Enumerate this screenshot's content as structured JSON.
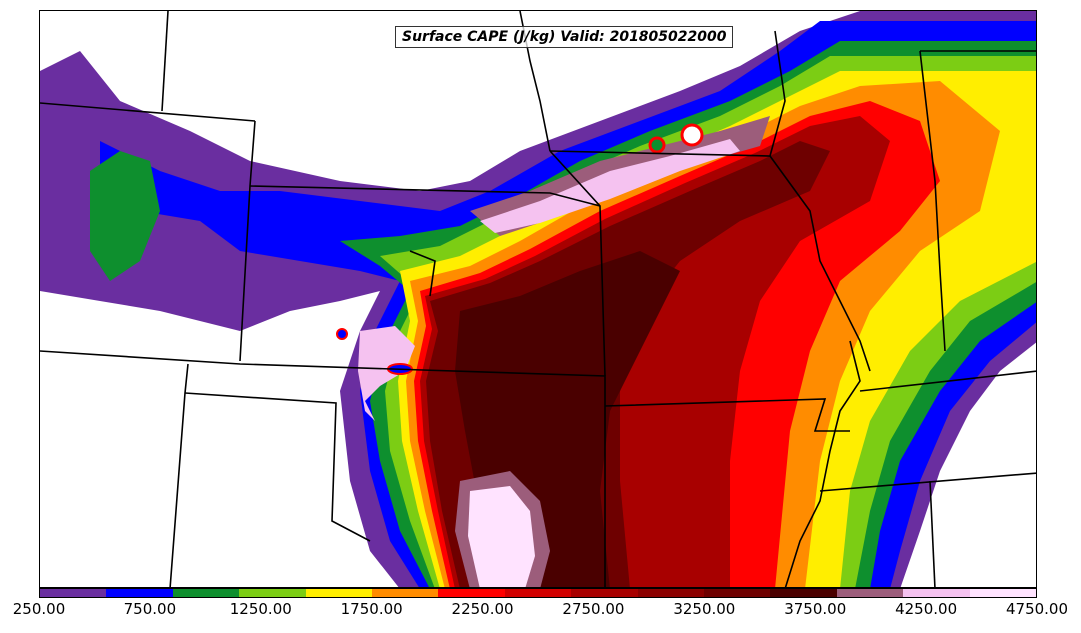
{
  "title": "Surface CAPE (J/kg) Valid: 201805022000",
  "colorbar": {
    "colors": [
      "#6a2ea0",
      "#0000ff",
      "#0e8f2e",
      "#7ccd14",
      "#ffee00",
      "#ff8c00",
      "#ff0000",
      "#d10000",
      "#a80000",
      "#8b0000",
      "#6e0000",
      "#4a0000",
      "#9c5d7b",
      "#f5c2f0",
      "#ffe3ff"
    ],
    "tick_labels": [
      "250.00",
      "750.00",
      "1250.00",
      "1750.00",
      "2250.00",
      "2750.00",
      "3250.00",
      "3750.00",
      "4250.00",
      "4750.00"
    ]
  }
}
